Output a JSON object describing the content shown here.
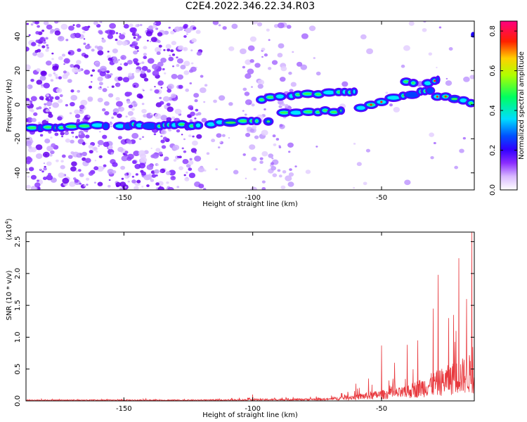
{
  "title": "C2E4.2022.346.22.34.R03",
  "chart_data": [
    {
      "type": "heatmap",
      "xlabel": "Height of straight line (km)",
      "ylabel": "Frequency (Hz)",
      "xlim": [
        -188,
        -14
      ],
      "ylim": [
        -50,
        49
      ],
      "xticks": [
        -150,
        -100,
        -50
      ],
      "yticks": [
        -40,
        -20,
        0,
        20,
        40
      ],
      "colorbar": {
        "label": "Normalized spectral amplitude",
        "range": [
          0,
          0.85
        ],
        "ticks": [
          0.0,
          0.2,
          0.4,
          0.6,
          0.8
        ],
        "colors": [
          "#ffffff",
          "#b070ff",
          "#4000ff",
          "#0000ff",
          "#00ffff",
          "#00ff00",
          "#ffff00",
          "#ff0000",
          "#ff0080"
        ]
      },
      "ridges": [
        {
          "x": [
            -188,
            -175,
            -160,
            -145,
            -125
          ],
          "y": [
            -14,
            -13,
            -12,
            -12,
            -12
          ]
        },
        {
          "x": [
            -125,
            -110,
            -100,
            -92
          ],
          "y": [
            -12,
            -10,
            -9,
            -10
          ]
        },
        {
          "x": [
            -98,
            -85,
            -70,
            -60
          ],
          "y": [
            3,
            5,
            7,
            8
          ]
        },
        {
          "x": [
            -90,
            -80,
            -65
          ],
          "y": [
            -5,
            -4,
            -4
          ]
        },
        {
          "x": [
            -60,
            -50,
            -40,
            -30
          ],
          "y": [
            -3,
            1,
            6,
            8
          ]
        },
        {
          "x": [
            -42,
            -35,
            -28
          ],
          "y": [
            14,
            12,
            15
          ]
        },
        {
          "x": [
            -30,
            -22,
            -14
          ],
          "y": [
            6,
            3,
            1
          ]
        }
      ]
    },
    {
      "type": "line",
      "xlabel": "Height of straight line (km)",
      "ylabel": "SNR (10 * v/v)",
      "yscale_label": "(x10",
      "yscale_exp": "4",
      "yscale_close": ")",
      "xlim": [
        -188,
        -14
      ],
      "ylim": [
        0,
        2.65
      ],
      "xticks": [
        -150,
        -100,
        -50
      ],
      "yticks": [
        0.0,
        0.5,
        1.0,
        1.5,
        2.0,
        2.5
      ],
      "color": "#e8383d",
      "peaks": [
        {
          "x": -100,
          "y": 0.1
        },
        {
          "x": -60,
          "y": 0.27
        },
        {
          "x": -55,
          "y": 0.35
        },
        {
          "x": -50,
          "y": 0.87
        },
        {
          "x": -45,
          "y": 0.6
        },
        {
          "x": -40,
          "y": 0.88
        },
        {
          "x": -36,
          "y": 0.95
        },
        {
          "x": -30,
          "y": 1.45
        },
        {
          "x": -28,
          "y": 1.98
        },
        {
          "x": -24,
          "y": 1.3
        },
        {
          "x": -22,
          "y": 1.35
        },
        {
          "x": -20,
          "y": 2.24
        },
        {
          "x": -17,
          "y": 1.6
        },
        {
          "x": -15,
          "y": 2.65
        },
        {
          "x": -14,
          "y": 0.3
        }
      ]
    }
  ]
}
